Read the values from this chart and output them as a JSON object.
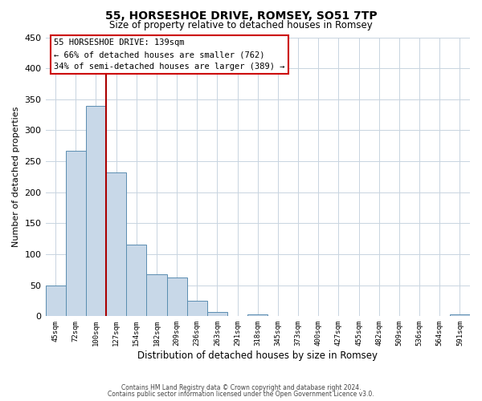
{
  "title": "55, HORSESHOE DRIVE, ROMSEY, SO51 7TP",
  "subtitle": "Size of property relative to detached houses in Romsey",
  "xlabel": "Distribution of detached houses by size in Romsey",
  "ylabel": "Number of detached properties",
  "footer_lines": [
    "Contains HM Land Registry data © Crown copyright and database right 2024.",
    "Contains public sector information licensed under the Open Government Licence v3.0."
  ],
  "bin_labels": [
    "45sqm",
    "72sqm",
    "100sqm",
    "127sqm",
    "154sqm",
    "182sqm",
    "209sqm",
    "236sqm",
    "263sqm",
    "291sqm",
    "318sqm",
    "345sqm",
    "373sqm",
    "400sqm",
    "427sqm",
    "455sqm",
    "482sqm",
    "509sqm",
    "536sqm",
    "564sqm",
    "591sqm"
  ],
  "bar_values": [
    50,
    267,
    340,
    232,
    115,
    68,
    63,
    25,
    7,
    0,
    3,
    0,
    0,
    0,
    0,
    0,
    0,
    0,
    0,
    0,
    3
  ],
  "bar_color": "#c8d8e8",
  "bar_edge_color": "#5a8db0",
  "vline_x_index": 3,
  "vline_color": "#aa0000",
  "annotation_line1": "55 HORSESHOE DRIVE: 139sqm",
  "annotation_line2": "← 66% of detached houses are smaller (762)",
  "annotation_line3": "34% of semi-detached houses are larger (389) →",
  "ylim": [
    0,
    450
  ],
  "yticks": [
    0,
    50,
    100,
    150,
    200,
    250,
    300,
    350,
    400,
    450
  ],
  "bg_color": "#ffffff",
  "grid_color": "#c8d4e0"
}
